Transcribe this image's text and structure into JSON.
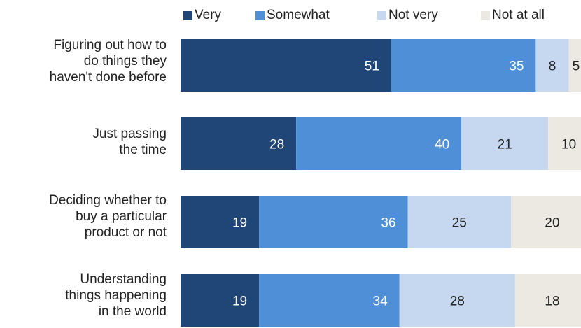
{
  "chart_data": {
    "type": "bar",
    "orientation": "horizontal",
    "stacked": true,
    "legend_position": "top",
    "categories": [
      [
        "Figuring out how to",
        "do things they",
        "haven't done before"
      ],
      [
        "Just passing",
        "the time"
      ],
      [
        "Deciding whether to",
        "buy a particular",
        "product or not"
      ],
      [
        "Understanding",
        "things happening",
        "in the world"
      ]
    ],
    "series": [
      {
        "name": "Very",
        "color": "#1f4677",
        "label_color": "#ffffff",
        "values": [
          51,
          28,
          19,
          19
        ]
      },
      {
        "name": "Somewhat",
        "color": "#4e8fd8",
        "label_color": "#ffffff",
        "values": [
          35,
          40,
          36,
          34
        ]
      },
      {
        "name": "Not very",
        "color": "#c5d8f0",
        "label_color": "#222222",
        "values": [
          8,
          21,
          25,
          28
        ]
      },
      {
        "name": "Not at all",
        "color": "#ece9e2",
        "label_color": "#222222",
        "values": [
          5,
          10,
          20,
          18
        ]
      }
    ]
  }
}
